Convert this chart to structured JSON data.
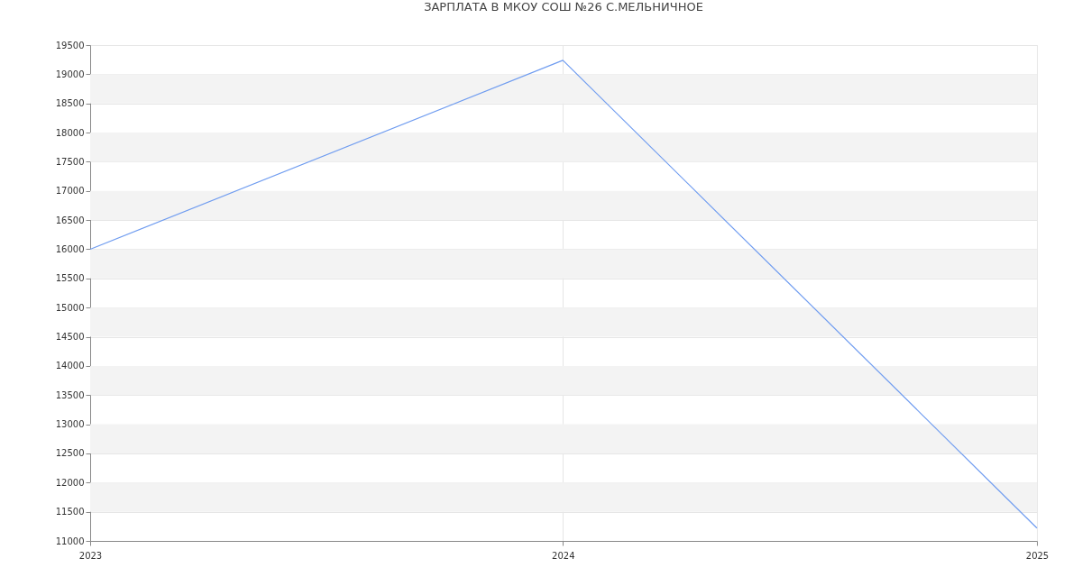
{
  "chart_data": {
    "type": "line",
    "title": "ЗАРПЛАТА В МКОУ СОШ №26 С.МЕЛЬНИЧНОЕ",
    "x": [
      "2023",
      "2024",
      "2025"
    ],
    "series": [
      {
        "color": "#6f9cf0",
        "values": [
          16000,
          19240,
          11220
        ]
      }
    ],
    "xlim": [
      "2023",
      "2025"
    ],
    "xticks": [
      "2023",
      "2024",
      "2025"
    ],
    "ylim": [
      11000,
      19500
    ],
    "yticks": [
      11000,
      11500,
      12000,
      12500,
      13000,
      13500,
      14000,
      14500,
      15000,
      15500,
      16000,
      16500,
      17000,
      17500,
      18000,
      18500,
      19000,
      19500
    ],
    "bands": [
      {
        "axis": "y",
        "from": 11500,
        "to": 12000,
        "color": "#f3f3f3"
      },
      {
        "axis": "y",
        "from": 12500,
        "to": 13000,
        "color": "#f3f3f3"
      },
      {
        "axis": "y",
        "from": 13500,
        "to": 14000,
        "color": "#f3f3f3"
      },
      {
        "axis": "y",
        "from": 14500,
        "to": 15000,
        "color": "#f3f3f3"
      },
      {
        "axis": "y",
        "from": 15500,
        "to": 16000,
        "color": "#f3f3f3"
      },
      {
        "axis": "y",
        "from": 16500,
        "to": 17000,
        "color": "#f3f3f3"
      },
      {
        "axis": "y",
        "from": 17500,
        "to": 18000,
        "color": "#f3f3f3"
      },
      {
        "axis": "y",
        "from": 18500,
        "to": 19000,
        "color": "#f3f3f3"
      }
    ],
    "grid": true,
    "marker": "none",
    "line_style": "solid"
  }
}
